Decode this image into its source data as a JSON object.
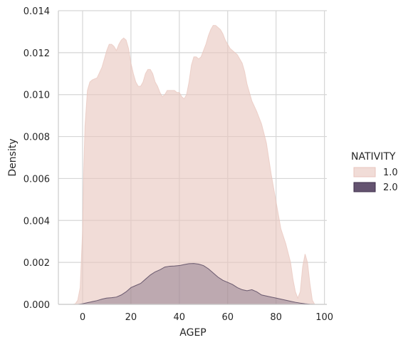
{
  "chart_data": {
    "type": "area",
    "title": "",
    "xlabel": "AGEP",
    "ylabel": "Density",
    "xlim": [
      -10,
      101
    ],
    "ylim": [
      0,
      0.014
    ],
    "xticks": [
      0,
      20,
      40,
      60,
      80,
      100
    ],
    "yticks": [
      0.0,
      0.002,
      0.004,
      0.006,
      0.008,
      0.01,
      0.012,
      0.014
    ],
    "ytick_labels": [
      "0.000",
      "0.002",
      "0.004",
      "0.006",
      "0.008",
      "0.010",
      "0.012",
      "0.014"
    ],
    "grid": true,
    "legend": {
      "title": "NATIVITY",
      "placement": "right"
    },
    "series": [
      {
        "name": "1.0",
        "color": "#e8c4bc",
        "edge_color": "#e8c4bc",
        "opacity": 0.6,
        "x": [
          -4,
          -3,
          -2,
          -1,
          0,
          0.5,
          1,
          2,
          3,
          4,
          6,
          8,
          10,
          11,
          12,
          13,
          14,
          15,
          16,
          17,
          18,
          19,
          20,
          21,
          22,
          23,
          24,
          25,
          26,
          27,
          28,
          29,
          30,
          31,
          32,
          33,
          34,
          35,
          36,
          37,
          38,
          39,
          40,
          41,
          42,
          43,
          44,
          45,
          46,
          47,
          48,
          49,
          50,
          51,
          52,
          53,
          54,
          55,
          56,
          57,
          58,
          59,
          60,
          61,
          62,
          63,
          64,
          65,
          66,
          67,
          68,
          70,
          72,
          74,
          76,
          78,
          80,
          82,
          84,
          86,
          87,
          88,
          89,
          90,
          91,
          92,
          93,
          94,
          95,
          96
        ],
        "y": [
          0,
          3e-05,
          0.0002,
          0.0008,
          0.0035,
          0.0065,
          0.0085,
          0.0102,
          0.0106,
          0.0107,
          0.0108,
          0.0113,
          0.0121,
          0.0124,
          0.0124,
          0.0123,
          0.0121,
          0.0124,
          0.0126,
          0.0127,
          0.0126,
          0.0122,
          0.0115,
          0.011,
          0.0106,
          0.0104,
          0.0104,
          0.0106,
          0.011,
          0.0112,
          0.0112,
          0.011,
          0.0106,
          0.0104,
          0.0101,
          0.0099,
          0.01,
          0.0102,
          0.0102,
          0.0102,
          0.0102,
          0.0101,
          0.0101,
          0.0099,
          0.0098,
          0.01,
          0.0106,
          0.0114,
          0.0118,
          0.0118,
          0.0117,
          0.0118,
          0.0121,
          0.0124,
          0.0128,
          0.0131,
          0.0133,
          0.0133,
          0.0132,
          0.0131,
          0.0129,
          0.0126,
          0.0124,
          0.0122,
          0.0121,
          0.012,
          0.0119,
          0.0117,
          0.0115,
          0.0111,
          0.0105,
          0.0097,
          0.0092,
          0.0086,
          0.0077,
          0.0062,
          0.0049,
          0.0036,
          0.0029,
          0.002,
          0.0012,
          0.0006,
          0.0003,
          0.0006,
          0.0018,
          0.0024,
          0.002,
          0.001,
          0.0002,
          0
        ]
      },
      {
        "name": "2.0",
        "color": "#5c4a68",
        "edge_color": "#3d2d4a",
        "opacity": 0.35,
        "x": [
          -2,
          0,
          2,
          4,
          6,
          8,
          10,
          12,
          14,
          16,
          18,
          20,
          22,
          24,
          26,
          28,
          30,
          32,
          34,
          36,
          38,
          40,
          42,
          44,
          46,
          48,
          50,
          52,
          54,
          56,
          58,
          60,
          62,
          64,
          66,
          68,
          70,
          72,
          74,
          76,
          78,
          80,
          82,
          84,
          86,
          88,
          90,
          92,
          94,
          96
        ],
        "y": [
          0,
          3e-05,
          8e-05,
          0.00013,
          0.00018,
          0.00025,
          0.0003,
          0.00032,
          0.00035,
          0.00045,
          0.0006,
          0.0008,
          0.0009,
          0.001,
          0.0012,
          0.0014,
          0.00155,
          0.00165,
          0.00178,
          0.00182,
          0.00183,
          0.00185,
          0.0019,
          0.00194,
          0.00195,
          0.00192,
          0.00185,
          0.0017,
          0.0015,
          0.0013,
          0.00115,
          0.00105,
          0.00095,
          0.0008,
          0.0007,
          0.00065,
          0.0007,
          0.0006,
          0.00045,
          0.0004,
          0.00035,
          0.0003,
          0.00025,
          0.0002,
          0.00015,
          0.0001,
          6e-05,
          3e-05,
          1e-05,
          0
        ]
      }
    ]
  }
}
